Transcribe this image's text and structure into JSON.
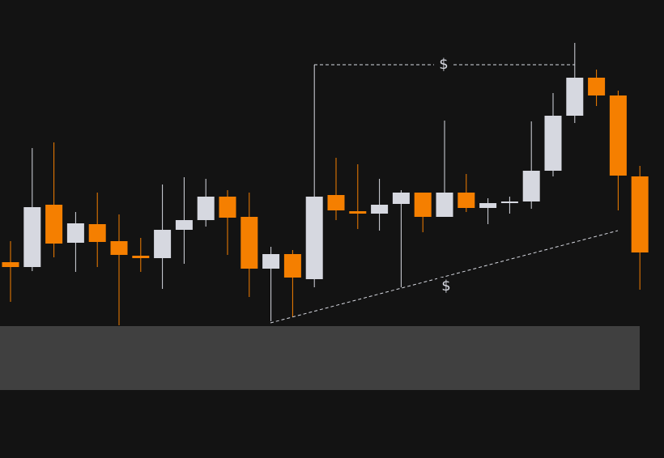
{
  "chart_data": {
    "type": "candlestick",
    "up_color": "#d6d8e0",
    "down_color": "#f57f00",
    "ylim": [
      0,
      566
    ],
    "open": [
      242,
      236,
      313,
      266,
      289,
      268,
      250,
      247,
      282,
      294,
      323,
      298,
      234,
      252,
      221,
      325,
      305,
      302,
      314,
      328,
      298,
      328,
      309,
      315,
      317,
      355,
      423,
      470,
      448,
      348
    ],
    "high": [
      268,
      383,
      390,
      304,
      328,
      301,
      272,
      338,
      347,
      345,
      331,
      328,
      261,
      257,
      486,
      371,
      363,
      345,
      331,
      328,
      417,
      351,
      321,
      323,
      416,
      451,
      513,
      480,
      454,
      361
    ],
    "low": [
      193,
      231,
      248,
      230,
      236,
      164,
      230,
      209,
      240,
      286,
      251,
      199,
      169,
      174,
      211,
      294,
      283,
      281,
      211,
      279,
      298,
      304,
      289,
      302,
      308,
      348,
      414,
      435,
      306,
      208
    ],
    "close": [
      236,
      310,
      265,
      290,
      267,
      251,
      247,
      282,
      294,
      323,
      297,
      234,
      252,
      223,
      323,
      306,
      302,
      313,
      328,
      298,
      328,
      309,
      315,
      317,
      355,
      423,
      470,
      448,
      349,
      254
    ],
    "annotations": [
      "$",
      "$"
    ]
  }
}
